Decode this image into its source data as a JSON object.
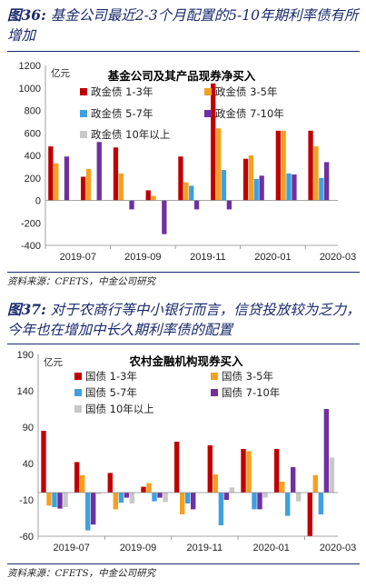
{
  "charts": [
    {
      "fig_label": "图36:",
      "title_text": "基金公司最近2-3个月配置的5-10年期利率债有所增加",
      "source": "资料来源：CFETS，中金公司研究"
    },
    {
      "fig_label": "图37:",
      "title_text": "对于农商行等中小银行而言，信贷投放较为乏力，今年也在增加中长久期利率债的配置",
      "source": "资料来源：CFETS，中金公司研究"
    }
  ],
  "colors": [
    "#c00000",
    "#f5a020",
    "#3fa0e0",
    "#7030a0",
    "#c8c8c8"
  ],
  "chart_data": [
    {
      "type": "bar",
      "title": "基金公司及其产品现券净买入",
      "unit": "亿元",
      "ylim": [
        -400,
        1200
      ],
      "yticks": [
        -400,
        -200,
        0,
        200,
        400,
        600,
        800,
        1000,
        1200
      ],
      "x_tick_labels": [
        "2019-07",
        "2019-09",
        "2019-11",
        "2020-01",
        "2020-03"
      ],
      "categories": [
        "2019-07",
        "2019-08",
        "2019-09",
        "2019-10",
        "2019-11",
        "2019-12",
        "2020-01",
        "2020-02",
        "2020-03"
      ],
      "legend_position": "top",
      "series": [
        {
          "name": "政金债 1-3年",
          "values": [
            480,
            210,
            470,
            90,
            390,
            1040,
            370,
            620,
            620
          ]
        },
        {
          "name": "政金债 3-5年",
          "values": [
            330,
            280,
            240,
            40,
            160,
            640,
            400,
            620,
            480
          ]
        },
        {
          "name": "政金债 5-7年",
          "values": [
            0,
            0,
            0,
            0,
            130,
            270,
            190,
            240,
            200
          ]
        },
        {
          "name": "政金债 7-10年",
          "values": [
            390,
            520,
            -80,
            -300,
            -80,
            -80,
            220,
            230,
            340
          ]
        },
        {
          "name": "政金债 10年以上",
          "values": [
            0,
            0,
            0,
            0,
            0,
            0,
            0,
            0,
            0
          ]
        }
      ]
    },
    {
      "type": "bar",
      "title": "农村金融机构现券买入",
      "unit": "亿元",
      "ylim": [
        -60,
        190
      ],
      "yticks": [
        -60,
        -10,
        40,
        90,
        140,
        190
      ],
      "x_tick_labels": [
        "2019-07",
        "2019-09",
        "2019-11",
        "2020-01",
        "2020-03"
      ],
      "categories": [
        "2019-07",
        "2019-08",
        "2019-09",
        "2019-10",
        "2019-11",
        "2019-12",
        "2020-01",
        "2020-02",
        "2020-03"
      ],
      "legend_position": "top",
      "series": [
        {
          "name": "国债 1-3年",
          "values": [
            85,
            42,
            27,
            8,
            70,
            65,
            60,
            60,
            -60
          ]
        },
        {
          "name": "国债 3-5年",
          "values": [
            -18,
            24,
            -23,
            13,
            -30,
            25,
            57,
            15,
            24
          ]
        },
        {
          "name": "国债 5-7年",
          "values": [
            -20,
            -52,
            -14,
            -12,
            -15,
            -45,
            -23,
            -32,
            -30
          ]
        },
        {
          "name": "国债 7-10年",
          "values": [
            -22,
            -44,
            -7,
            -7,
            -23,
            -10,
            -23,
            35,
            115
          ]
        },
        {
          "name": "国债 10年以上",
          "values": [
            -20,
            -2,
            -15,
            -13,
            0,
            7,
            -7,
            -12,
            48
          ]
        }
      ]
    }
  ],
  "extra_series": [
    {
      "chart": 0,
      "idx": 4,
      "values": [
        0,
        0,
        0,
        0,
        0,
        0,
        0,
        0,
        0
      ]
    },
    {
      "chart": 1,
      "idx": 5,
      "values": [
        0,
        0,
        0,
        0,
        0,
        0,
        0,
        0,
        0
      ]
    }
  ]
}
